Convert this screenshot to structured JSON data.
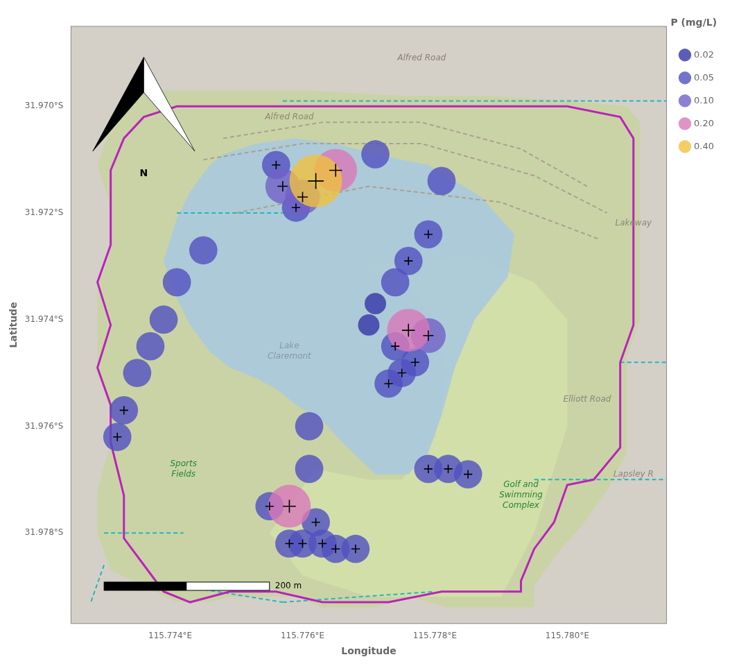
{
  "chart_data": {
    "type": "scatter",
    "xlabel": "Longitude",
    "ylabel": "Latitude",
    "xlim": [
      115.7725,
      115.7815
    ],
    "ylim": [
      -31.9797,
      -31.9685
    ],
    "xticks": [
      {
        "value": 115.774,
        "label": "115.774°E"
      },
      {
        "value": 115.776,
        "label": "115.776°E"
      },
      {
        "value": 115.778,
        "label": "115.778°E"
      },
      {
        "value": 115.78,
        "label": "115.780°E"
      }
    ],
    "yticks": [
      {
        "value": -31.97,
        "label": "31.970°S"
      },
      {
        "value": -31.972,
        "label": "31.972°S"
      },
      {
        "value": -31.974,
        "label": "31.974°S"
      },
      {
        "value": -31.976,
        "label": "31.976°S"
      },
      {
        "value": -31.978,
        "label": "31.978°S"
      }
    ],
    "grid": false,
    "legend": "right",
    "legend_title": "P (mg/L)",
    "background": "#d4d0c8",
    "series": [
      {
        "name": "0.02",
        "p": 0.02,
        "color": "#3535a8",
        "x": [
          115.7771,
          115.777
        ],
        "values": [
          -31.9737,
          -31.9741
        ],
        "exceeds": [
          false,
          false
        ]
      },
      {
        "name": "0.05",
        "p": 0.05,
        "color": "#5050c0",
        "x": [
          115.7759,
          115.7756,
          115.7771,
          115.7781,
          115.7779,
          115.7776,
          115.7774,
          115.7745,
          115.7741,
          115.7739,
          115.7737,
          115.7735,
          115.7733,
          115.7732,
          115.7774,
          115.7777,
          115.7775,
          115.7773,
          115.7761,
          115.7761,
          115.7762,
          115.776,
          115.7758,
          115.7763,
          115.7765,
          115.7768,
          115.7755,
          115.7779,
          115.7782,
          115.7785
        ],
        "values": [
          -31.9719,
          -31.9711,
          -31.9709,
          -31.9714,
          -31.9724,
          -31.9729,
          -31.9733,
          -31.9727,
          -31.9733,
          -31.974,
          -31.9745,
          -31.975,
          -31.9757,
          -31.9762,
          -31.9745,
          -31.9748,
          -31.975,
          -31.9752,
          -31.976,
          -31.9768,
          -31.9778,
          -31.9782,
          -31.9782,
          -31.9782,
          -31.9783,
          -31.9783,
          -31.9775,
          -31.9768,
          -31.9768,
          -31.9769
        ],
        "exceeds": [
          true,
          true,
          false,
          false,
          true,
          true,
          false,
          false,
          false,
          false,
          false,
          false,
          true,
          true,
          true,
          true,
          true,
          true,
          false,
          false,
          true,
          true,
          true,
          true,
          true,
          true,
          true,
          true,
          true,
          true
        ]
      },
      {
        "name": "0.10",
        "p": 0.1,
        "color": "#7060c8",
        "x": [
          115.776,
          115.7757,
          115.7779
        ],
        "values": [
          -31.9717,
          -31.9715,
          -31.9743
        ],
        "exceeds": [
          true,
          true,
          true
        ]
      },
      {
        "name": "0.20",
        "p": 0.2,
        "color": "#d878b8",
        "x": [
          115.7765,
          115.7776,
          115.7758
        ],
        "values": [
          -31.9712,
          -31.9742,
          -31.9775
        ],
        "exceeds": [
          true,
          true,
          true
        ]
      },
      {
        "name": "0.40",
        "p": 0.4,
        "color": "#f0c040",
        "x": [
          115.7762
        ],
        "values": [
          -31.9714
        ],
        "exceeds": [
          true
        ]
      }
    ],
    "shapes": [
      {
        "type": "area",
        "color": "#c8d4a0",
        "points": [
          [
            115.7736,
            -31.9697
          ],
          [
            115.7748,
            -31.9697
          ],
          [
            115.776,
            -31.9697
          ],
          [
            115.7775,
            -31.9698
          ],
          [
            115.7788,
            -31.9698
          ],
          [
            115.78,
            -31.9699
          ],
          [
            115.7809,
            -31.97
          ],
          [
            115.7811,
            -31.9703
          ],
          [
            115.7811,
            -31.9712
          ],
          [
            115.7811,
            -31.9722
          ],
          [
            115.7811,
            -31.9732
          ],
          [
            115.7811,
            -31.974
          ],
          [
            115.7809,
            -31.9747
          ],
          [
            115.7809,
            -31.9758
          ],
          [
            115.7809,
            -31.9765
          ],
          [
            115.7806,
            -31.9772
          ],
          [
            115.7802,
            -31.9779
          ],
          [
            115.7799,
            -31.9783
          ],
          [
            115.7795,
            -31.979
          ],
          [
            115.7795,
            -31.9794
          ],
          [
            115.7782,
            -31.9794
          ],
          [
            115.7776,
            -31.9792
          ],
          [
            115.7771,
            -31.9794
          ],
          [
            115.7763,
            -31.9794
          ],
          [
            115.7759,
            -31.9792
          ],
          [
            115.7749,
            -31.9792
          ],
          [
            115.7746,
            -31.9793
          ],
          [
            115.7741,
            -31.9793
          ],
          [
            115.7736,
            -31.979
          ],
          [
            115.7731,
            -31.9787
          ],
          [
            115.7729,
            -31.978
          ],
          [
            115.7729,
            -31.9772
          ],
          [
            115.7731,
            -31.9763
          ],
          [
            115.7731,
            -31.9757
          ],
          [
            115.7729,
            -31.975
          ],
          [
            115.7729,
            -31.9742
          ],
          [
            115.7729,
            -31.9734
          ],
          [
            115.7731,
            -31.9727
          ],
          [
            115.7731,
            -31.9719
          ],
          [
            115.7729,
            -31.9711
          ],
          [
            115.7731,
            -31.9704
          ],
          [
            115.7736,
            -31.9697
          ]
        ]
      },
      {
        "type": "area",
        "color": "#d4e0a8",
        "points": [
          [
            115.777,
            -31.973
          ],
          [
            115.7785,
            -31.9728
          ],
          [
            115.7795,
            -31.9733
          ],
          [
            115.78,
            -31.974
          ],
          [
            115.78,
            -31.976
          ],
          [
            115.7795,
            -31.978
          ],
          [
            115.779,
            -31.9792
          ],
          [
            115.777,
            -31.9792
          ],
          [
            115.776,
            -31.9788
          ],
          [
            115.7755,
            -31.978
          ],
          [
            115.7762,
            -31.9768
          ],
          [
            115.777,
            -31.977
          ],
          [
            115.7775,
            -31.977
          ],
          [
            115.778,
            -31.9762
          ],
          [
            115.7782,
            -31.975
          ],
          [
            115.778,
            -31.974
          ],
          [
            115.7775,
            -31.9733
          ],
          [
            115.777,
            -31.973
          ]
        ]
      },
      {
        "type": "area",
        "color": "#a8c8e0",
        "points": [
          [
            115.7748,
            -31.9709
          ],
          [
            115.7753,
            -31.9707
          ],
          [
            115.7759,
            -31.9706
          ],
          [
            115.7765,
            -31.9707
          ],
          [
            115.7771,
            -31.9709
          ],
          [
            115.7779,
            -31.9711
          ],
          [
            115.7787,
            -31.9717
          ],
          [
            115.7792,
            -31.9724
          ],
          [
            115.7791,
            -31.9732
          ],
          [
            115.7786,
            -31.974
          ],
          [
            115.7783,
            -31.9749
          ],
          [
            115.7781,
            -31.9758
          ],
          [
            115.7779,
            -31.9765
          ],
          [
            115.7776,
            -31.9769
          ],
          [
            115.7771,
            -31.9769
          ],
          [
            115.7766,
            -31.9763
          ],
          [
            115.7763,
            -31.9759
          ],
          [
            115.7759,
            -31.9756
          ],
          [
            115.7756,
            -31.9753
          ],
          [
            115.7753,
            -31.9751
          ],
          [
            115.7749,
            -31.9749
          ],
          [
            115.7746,
            -31.9746
          ],
          [
            115.7743,
            -31.9741
          ],
          [
            115.7741,
            -31.9736
          ],
          [
            115.7739,
            -31.9729
          ],
          [
            115.7741,
            -31.9721
          ],
          [
            115.7743,
            -31.9716
          ],
          [
            115.7746,
            -31.9711
          ],
          [
            115.7748,
            -31.9709
          ]
        ]
      },
      {
        "type": "line",
        "line_style": "dashed",
        "color": "#a8a090",
        "points": [
          [
            115.7748,
            -31.9706
          ],
          [
            115.7763,
            -31.9703
          ],
          [
            115.7778,
            -31.9703
          ],
          [
            115.7793,
            -31.9708
          ],
          [
            115.7803,
            -31.9715
          ]
        ]
      },
      {
        "type": "line",
        "line_style": "dashed",
        "color": "#a8a090",
        "points": [
          [
            115.7745,
            -31.971
          ],
          [
            115.776,
            -31.9707
          ],
          [
            115.7778,
            -31.9707
          ],
          [
            115.7795,
            -31.9713
          ],
          [
            115.7806,
            -31.972
          ]
        ]
      },
      {
        "type": "line",
        "line_style": "dashed",
        "color": "#a8a090",
        "points": [
          [
            115.775,
            -31.972
          ],
          [
            115.777,
            -31.9715
          ],
          [
            115.779,
            -31.9718
          ],
          [
            115.7805,
            -31.9725
          ]
        ]
      },
      {
        "type": "line",
        "line_style": "dashed",
        "color": "#20b8b8",
        "points": [
          [
            115.7757,
            -31.9699
          ],
          [
            115.7815,
            -31.9699
          ]
        ]
      },
      {
        "type": "line",
        "line_style": "dashed",
        "color": "#20b8b8",
        "points": [
          [
            115.7741,
            -31.972
          ],
          [
            115.7757,
            -31.972
          ]
        ]
      },
      {
        "type": "line",
        "line_style": "dashed",
        "color": "#20b8b8",
        "points": [
          [
            115.773,
            -31.978
          ],
          [
            115.7742,
            -31.978
          ]
        ]
      },
      {
        "type": "line",
        "line_style": "dashed",
        "color": "#20b8b8",
        "points": [
          [
            115.773,
            -31.9786
          ],
          [
            115.7728,
            -31.9793
          ]
        ]
      },
      {
        "type": "line",
        "line_style": "dashed",
        "color": "#20b8b8",
        "points": [
          [
            115.7742,
            -31.979
          ],
          [
            115.7757,
            -31.9793
          ]
        ]
      },
      {
        "type": "line",
        "line_style": "dashed",
        "color": "#20b8b8",
        "points": [
          [
            115.7757,
            -31.9793
          ],
          [
            115.778,
            -31.9791
          ]
        ]
      },
      {
        "type": "line",
        "line_style": "dashed",
        "color": "#20b8b8",
        "points": [
          [
            115.7795,
            -31.977
          ],
          [
            115.7815,
            -31.977
          ]
        ]
      },
      {
        "type": "line",
        "line_style": "dashed",
        "color": "#20b8b8",
        "points": [
          [
            115.7808,
            -31.9748
          ],
          [
            115.7815,
            -31.9748
          ]
        ]
      },
      {
        "type": "outline",
        "color": "#bb22bb",
        "points": [
          [
            115.7741,
            -31.97
          ],
          [
            115.7755,
            -31.97
          ],
          [
            115.777,
            -31.97
          ],
          [
            115.7785,
            -31.97
          ],
          [
            115.78,
            -31.97
          ],
          [
            115.7808,
            -31.9702
          ],
          [
            115.781,
            -31.9706
          ],
          [
            115.781,
            -31.9715
          ],
          [
            115.781,
            -31.9724
          ],
          [
            115.781,
            -31.9733
          ],
          [
            115.781,
            -31.9741
          ],
          [
            115.7808,
            -31.9748
          ],
          [
            115.7808,
            -31.9758
          ],
          [
            115.7808,
            -31.9764
          ],
          [
            115.7804,
            -31.977
          ],
          [
            115.78,
            -31.9771
          ],
          [
            115.7798,
            -31.9778
          ],
          [
            115.7795,
            -31.9783
          ],
          [
            115.7793,
            -31.9789
          ],
          [
            115.7793,
            -31.9791
          ],
          [
            115.7781,
            -31.9791
          ],
          [
            115.7773,
            -31.9793
          ],
          [
            115.7763,
            -31.9793
          ],
          [
            115.7756,
            -31.9791
          ],
          [
            115.7749,
            -31.9791
          ],
          [
            115.7743,
            -31.9793
          ],
          [
            115.7739,
            -31.9791
          ],
          [
            115.7736,
            -31.9786
          ],
          [
            115.7733,
            -31.9781
          ],
          [
            115.7733,
            -31.9773
          ],
          [
            115.7731,
            -31.9763
          ],
          [
            115.7731,
            -31.9756
          ],
          [
            115.7729,
            -31.9749
          ],
          [
            115.7731,
            -31.9741
          ],
          [
            115.7729,
            -31.9733
          ],
          [
            115.7731,
            -31.9726
          ],
          [
            115.7731,
            -31.9719
          ],
          [
            115.7731,
            -31.9712
          ],
          [
            115.7733,
            -31.9706
          ],
          [
            115.7736,
            -31.9702
          ],
          [
            115.7741,
            -31.97
          ]
        ]
      }
    ],
    "annotations": [
      {
        "text": "Alfred Road",
        "x": 115.7778,
        "y": -31.9691,
        "color": "#888070"
      },
      {
        "text": "Alfred Road",
        "x": 115.7758,
        "y": -31.9702,
        "color": "#908870"
      },
      {
        "text": "Lakeway",
        "x": 115.781,
        "y": -31.9722,
        "color": "#888878"
      },
      {
        "text": "Elliott Road",
        "x": 115.7803,
        "y": -31.9755,
        "color": "#888878"
      },
      {
        "text": "Lapsley R",
        "x": 115.781,
        "y": -31.9769,
        "color": "#888878"
      },
      {
        "text": "Lake\nClaremont",
        "x": 115.7758,
        "y": -31.9746,
        "color": "#8898a8"
      },
      {
        "text": "Sports\nFields",
        "x": 115.7742,
        "y": -31.9768,
        "color": "#228833"
      },
      {
        "text": "Golf and\nSwimming\nComplex",
        "x": 115.7793,
        "y": -31.9773,
        "color": "#228833"
      }
    ],
    "north_arrow": {
      "x": 115.7736,
      "y": -31.9693,
      "size": 0.0022,
      "label": "N"
    },
    "scalebar": {
      "x1": 115.773,
      "x2": 115.7755,
      "y": -31.979,
      "label": "200 m"
    }
  }
}
